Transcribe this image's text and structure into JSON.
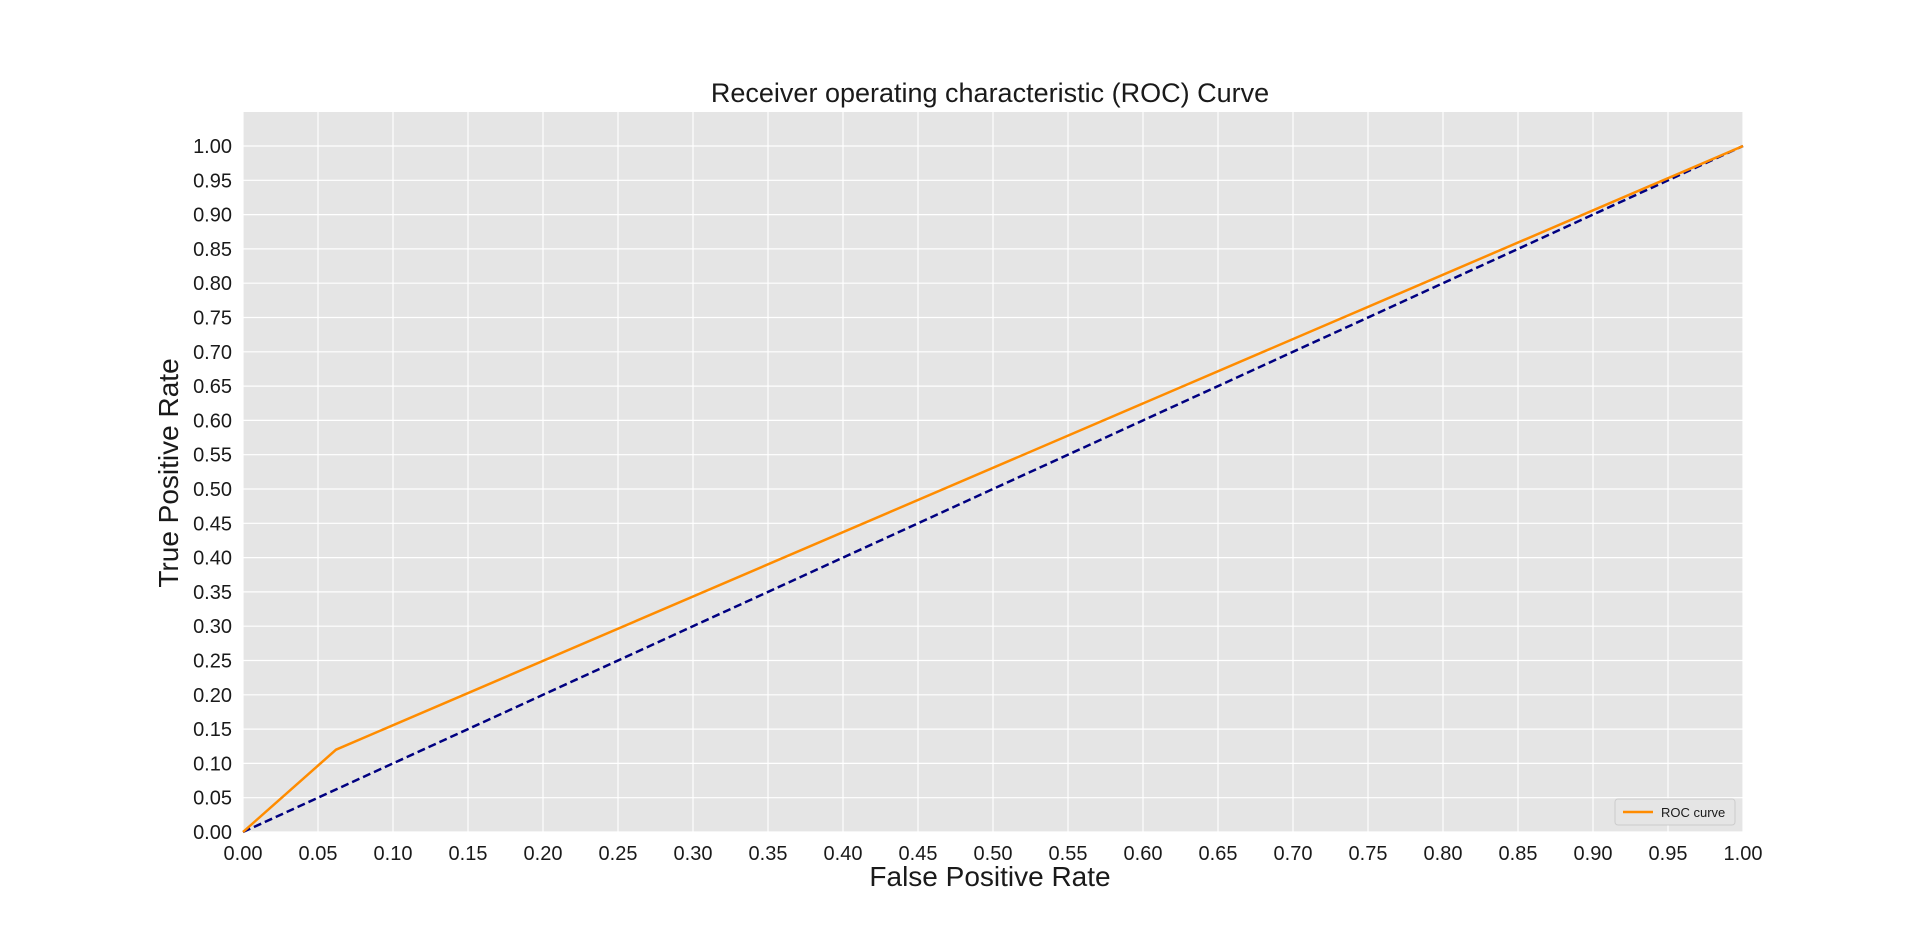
{
  "chart_data": {
    "type": "line",
    "title": "Receiver operating characteristic (ROC) Curve",
    "xlabel": "False Positive Rate",
    "ylabel": "True Positive Rate",
    "xlim": [
      0,
      1
    ],
    "ylim": [
      0,
      1
    ],
    "grid": true,
    "legend_position": "lower-right",
    "background_color": "#e5e5e5",
    "grid_color": "#ffffff",
    "xticks": [
      "0.00",
      "0.05",
      "0.10",
      "0.15",
      "0.20",
      "0.25",
      "0.30",
      "0.35",
      "0.40",
      "0.45",
      "0.50",
      "0.55",
      "0.60",
      "0.65",
      "0.70",
      "0.75",
      "0.80",
      "0.85",
      "0.90",
      "0.95",
      "1.00"
    ],
    "yticks": [
      "0.00",
      "0.05",
      "0.10",
      "0.15",
      "0.20",
      "0.25",
      "0.30",
      "0.35",
      "0.40",
      "0.45",
      "0.50",
      "0.55",
      "0.60",
      "0.65",
      "0.70",
      "0.75",
      "0.80",
      "0.85",
      "0.90",
      "0.95",
      "1.00"
    ],
    "series": [
      {
        "name": "ROC curve",
        "color": "#ff8c00",
        "style": "solid",
        "x": [
          0.0,
          0.062,
          1.0
        ],
        "y": [
          0.0,
          0.12,
          1.0
        ]
      },
      {
        "color": "#000080",
        "style": "dashed",
        "x": [
          0.0,
          1.0
        ],
        "y": [
          0.0,
          1.0
        ]
      }
    ]
  }
}
